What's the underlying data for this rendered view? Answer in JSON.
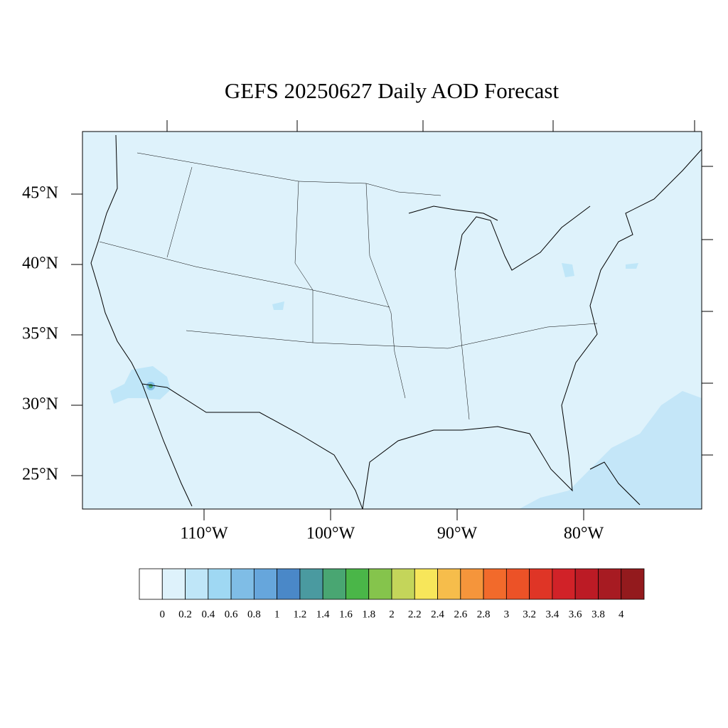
{
  "title": "GEFS 20250627 Daily AOD Forecast",
  "map": {
    "lat_ticks": [
      {
        "value": 45,
        "label": "45°N"
      },
      {
        "value": 40,
        "label": "40°N"
      },
      {
        "value": 35,
        "label": "35°N"
      },
      {
        "value": 30,
        "label": "30°N"
      },
      {
        "value": 25,
        "label": "25°N"
      }
    ],
    "lon_ticks": [
      {
        "value": -110,
        "label": "110°W"
      },
      {
        "value": -100,
        "label": "100°W"
      },
      {
        "value": -90,
        "label": "90°W"
      },
      {
        "value": -80,
        "label": "80°W"
      }
    ]
  },
  "colorbar": {
    "levels": [
      0,
      0.2,
      0.4,
      0.6,
      0.8,
      1,
      1.2,
      1.4,
      1.6,
      1.8,
      2,
      2.2,
      2.4,
      2.6,
      2.8,
      3,
      3.2,
      3.4,
      3.6,
      3.8,
      4
    ],
    "colors": [
      "#ffffff",
      "#def2fb",
      "#bfe6f8",
      "#9fd8f3",
      "#7fbde6",
      "#66a6dc",
      "#4a88c8",
      "#4a9aa0",
      "#49a672",
      "#4ab648",
      "#85c44c",
      "#c4d55a",
      "#f7e65a",
      "#f6bd4b",
      "#f5953b",
      "#f26a2b",
      "#ec5227",
      "#df3526",
      "#d12228",
      "#bc1b25",
      "#a71b22",
      "#931a1d"
    ]
  }
}
